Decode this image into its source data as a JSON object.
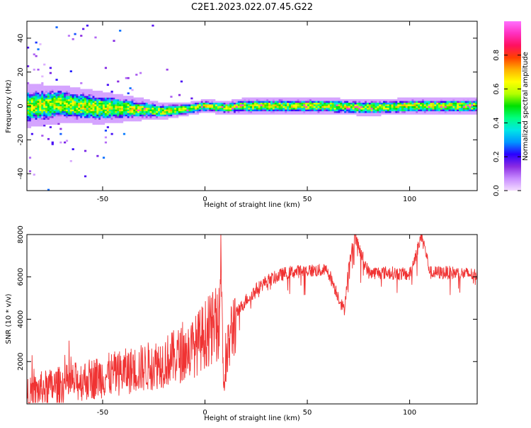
{
  "figure": {
    "title": "C2E1.2023.022.07.45.G22"
  },
  "chart_data": [
    {
      "type": "heatmap",
      "xlabel": "Height of straight line (km)",
      "ylabel": "Frequency (Hz)",
      "xlim": [
        -87,
        133
      ],
      "ylim": [
        -50,
        50
      ],
      "x_ticks": [
        -50,
        0,
        50,
        100
      ],
      "x_tick_labels": [
        "-50",
        "0",
        "50",
        "100"
      ],
      "y_ticks": [
        40,
        20,
        0,
        -20,
        -40
      ],
      "y_tick_labels": [
        "40",
        "20",
        "0",
        "-20",
        "-40"
      ],
      "grid": false,
      "colormap": "gist_ncar-like",
      "colorbar": {
        "label": "Normalized spectral amplitude",
        "range": [
          0,
          1
        ],
        "ticks": [
          0.0,
          0.2,
          0.4,
          0.6,
          0.8
        ],
        "tick_labels": [
          "0.0",
          "0.2",
          "0.4",
          "0.6",
          "0.8"
        ],
        "colors": [
          "#f4dcff",
          "#c88cff",
          "#8a2be2",
          "#2a00ff",
          "#0096ff",
          "#00e6e6",
          "#00ff80",
          "#00e000",
          "#b4ff00",
          "#ffff00",
          "#ffb000",
          "#ff4000",
          "#ff1060",
          "#ff30c0",
          "#ff70ff"
        ]
      },
      "band": {
        "description_x_km": [
          -87,
          -70,
          -50,
          -30,
          -20,
          -10,
          0,
          10,
          20,
          40,
          60,
          80,
          100,
          133
        ],
        "center_hz": [
          0,
          1,
          -1,
          -2,
          -3,
          -2,
          0,
          -1,
          0,
          0,
          0,
          -1,
          0,
          0
        ],
        "halfwidth_hz": [
          8,
          7,
          6,
          4,
          3,
          2.5,
          2.5,
          2.5,
          3,
          3,
          3,
          3,
          3,
          3
        ]
      }
    },
    {
      "type": "line",
      "xlabel": "Height of straight line (km)",
      "ylabel": "SNR (10 * v/v)",
      "xlim": [
        -87,
        133
      ],
      "ylim": [
        0,
        8000
      ],
      "x_ticks": [
        -50,
        0,
        50,
        100
      ],
      "x_tick_labels": [
        "-50",
        "0",
        "50",
        "100"
      ],
      "y_ticks": [
        2000,
        4000,
        6000,
        8000
      ],
      "y_tick_labels": [
        "2000",
        "4000",
        "6000",
        "8000"
      ],
      "grid": false,
      "color": "#f03232",
      "series": [
        {
          "x": [
            -87,
            -80,
            -70,
            -60,
            -50,
            -40,
            -30,
            -20,
            -10,
            -5,
            0,
            4,
            7,
            8,
            9,
            10,
            12,
            15,
            20,
            25,
            30,
            35,
            40,
            50,
            60,
            68,
            70,
            73,
            80,
            90,
            100,
            106,
            110,
            120,
            133
          ],
          "y": [
            400,
            700,
            900,
            1100,
            1300,
            1500,
            1700,
            2000,
            2400,
            2700,
            3300,
            3600,
            3900,
            7700,
            800,
            1500,
            3000,
            4200,
            4900,
            5400,
            5800,
            6000,
            6200,
            6300,
            6300,
            4400,
            6300,
            7900,
            6200,
            6200,
            6100,
            8000,
            6200,
            6200,
            6100
          ]
        }
      ]
    }
  ]
}
